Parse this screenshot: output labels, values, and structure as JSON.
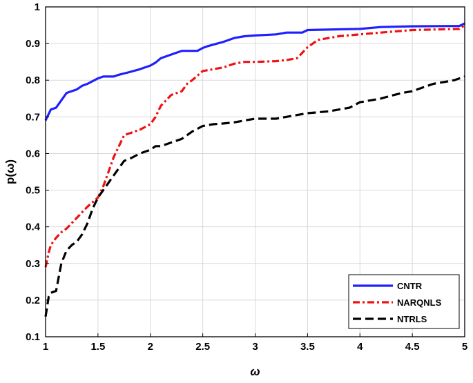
{
  "chart_data": {
    "type": "line",
    "title": "",
    "xlabel": "ω",
    "ylabel": "p(ω)",
    "xlim": [
      1,
      5
    ],
    "ylim": [
      0.1,
      1
    ],
    "xticks": [
      "1",
      "1.5",
      "2",
      "2.5",
      "3",
      "3.5",
      "4",
      "4.5",
      "5"
    ],
    "yticks": [
      "0.1",
      "0.2",
      "0.3",
      "0.4",
      "0.5",
      "0.6",
      "0.7",
      "0.8",
      "0.9",
      "1"
    ],
    "grid": true,
    "legend_position": "bottom-right",
    "series": [
      {
        "name": "CNTR",
        "color": "#1f1fff",
        "line_style": "solid",
        "x": [
          1,
          1.05,
          1.1,
          1.15,
          1.2,
          1.3,
          1.35,
          1.4,
          1.5,
          1.55,
          1.65,
          1.7,
          1.8,
          1.9,
          2.0,
          2.05,
          2.1,
          2.2,
          2.3,
          2.45,
          2.5,
          2.55,
          2.6,
          2.7,
          2.8,
          2.9,
          3.0,
          3.2,
          3.3,
          3.45,
          3.5,
          4.0,
          4.2,
          4.5,
          4.95,
          5.0
        ],
        "y": [
          0.69,
          0.72,
          0.725,
          0.745,
          0.765,
          0.775,
          0.785,
          0.79,
          0.805,
          0.81,
          0.81,
          0.815,
          0.822,
          0.83,
          0.84,
          0.848,
          0.86,
          0.87,
          0.88,
          0.88,
          0.888,
          0.893,
          0.897,
          0.905,
          0.915,
          0.92,
          0.922,
          0.925,
          0.93,
          0.93,
          0.937,
          0.94,
          0.945,
          0.947,
          0.948,
          0.955
        ]
      },
      {
        "name": "NARQNLS",
        "color": "#ee1111",
        "line_style": "dashdot",
        "x": [
          1,
          1.03,
          1.05,
          1.1,
          1.15,
          1.2,
          1.25,
          1.3,
          1.35,
          1.4,
          1.5,
          1.55,
          1.6,
          1.65,
          1.7,
          1.75,
          1.85,
          1.9,
          2.0,
          2.05,
          2.1,
          2.15,
          2.2,
          2.3,
          2.35,
          2.4,
          2.5,
          2.6,
          2.7,
          2.8,
          2.9,
          3.0,
          3.2,
          3.3,
          3.4,
          3.5,
          3.6,
          3.8,
          4.0,
          4.2,
          4.5,
          4.95,
          5.0
        ],
        "y": [
          0.29,
          0.33,
          0.35,
          0.37,
          0.385,
          0.395,
          0.41,
          0.425,
          0.44,
          0.455,
          0.48,
          0.51,
          0.55,
          0.59,
          0.62,
          0.65,
          0.66,
          0.665,
          0.68,
          0.7,
          0.73,
          0.745,
          0.76,
          0.77,
          0.79,
          0.8,
          0.825,
          0.83,
          0.835,
          0.845,
          0.85,
          0.85,
          0.852,
          0.855,
          0.86,
          0.89,
          0.91,
          0.92,
          0.925,
          0.93,
          0.937,
          0.94,
          0.95
        ]
      },
      {
        "name": "NTRLS",
        "color": "#000000",
        "line_style": "dashed",
        "x": [
          1,
          1.03,
          1.05,
          1.1,
          1.15,
          1.2,
          1.25,
          1.3,
          1.35,
          1.4,
          1.45,
          1.5,
          1.55,
          1.6,
          1.65,
          1.7,
          1.75,
          1.8,
          1.9,
          2.0,
          2.05,
          2.1,
          2.2,
          2.3,
          2.4,
          2.5,
          2.6,
          2.7,
          2.8,
          2.9,
          3.0,
          3.2,
          3.3,
          3.5,
          3.7,
          3.8,
          3.9,
          4.0,
          4.2,
          4.3,
          4.4,
          4.5,
          4.6,
          4.7,
          4.8,
          4.9,
          5.0
        ],
        "y": [
          0.155,
          0.21,
          0.22,
          0.225,
          0.3,
          0.335,
          0.35,
          0.36,
          0.38,
          0.41,
          0.45,
          0.48,
          0.5,
          0.52,
          0.54,
          0.56,
          0.58,
          0.585,
          0.6,
          0.61,
          0.62,
          0.62,
          0.63,
          0.64,
          0.66,
          0.675,
          0.68,
          0.682,
          0.685,
          0.69,
          0.695,
          0.695,
          0.7,
          0.71,
          0.715,
          0.72,
          0.725,
          0.74,
          0.75,
          0.758,
          0.765,
          0.77,
          0.78,
          0.79,
          0.795,
          0.8,
          0.81
        ]
      }
    ]
  }
}
